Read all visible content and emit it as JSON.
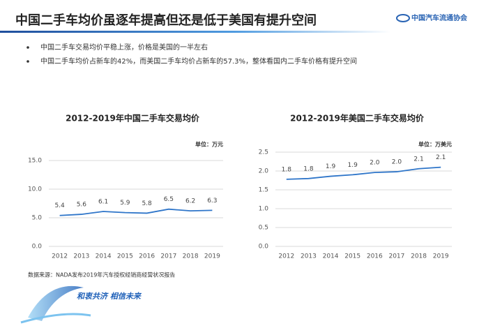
{
  "title": "中国二手车均价虽逐年提高但还是低于美国有提升空间",
  "logo": "中国汽车流通协会",
  "bullets": [
    "中国二手车交易均价平稳上涨，价格是美国的一半左右",
    "中国二手车均价占新车的42%，而美国二手车均价占新车的57.3%，整体看国内二手车价格有提升空间"
  ],
  "source": "数据来源：NADA发布2019年汽车授权经销商经营状况报告",
  "slogan": "和衷共济 相信未来",
  "chart_data": [
    {
      "type": "line",
      "title": "2012-2019年中国二手车交易均价",
      "unit": "单位：万元",
      "categories": [
        "2012",
        "2013",
        "2014",
        "2015",
        "2016",
        "2017",
        "2018",
        "2019"
      ],
      "values": [
        5.4,
        5.6,
        6.1,
        5.9,
        5.8,
        6.5,
        6.2,
        6.3
      ],
      "color": "#2e75c9",
      "ylim": [
        0,
        15
      ],
      "yticks": [
        {
          "value": 0,
          "label": "0.0"
        },
        {
          "value": 5,
          "label": "5.0"
        },
        {
          "value": 10,
          "label": "10.0"
        },
        {
          "value": 15,
          "label": "15.0"
        }
      ],
      "grid": true
    },
    {
      "type": "line",
      "title": "2012-2019年美国二手车交易均价",
      "unit": "单位：万美元",
      "categories": [
        "2012",
        "2013",
        "2014",
        "2015",
        "2016",
        "2017",
        "2018",
        "2019"
      ],
      "values": [
        1.78,
        1.8,
        1.86,
        1.9,
        1.96,
        1.98,
        2.06,
        2.1
      ],
      "value_labels": [
        "1.8",
        "1.8",
        "1.9",
        "1.9",
        "2.0",
        "2.0",
        "2.1",
        "2.1"
      ],
      "color": "#2e75c9",
      "ylim": [
        0,
        2.5
      ],
      "yticks": [
        {
          "value": 0,
          "label": "0.0"
        },
        {
          "value": 0.5,
          "label": "0.5"
        },
        {
          "value": 1,
          "label": "1.0"
        },
        {
          "value": 1.5,
          "label": "1.5"
        },
        {
          "value": 2,
          "label": "2.0"
        },
        {
          "value": 2.5,
          "label": "2.5"
        }
      ],
      "grid": true
    }
  ]
}
